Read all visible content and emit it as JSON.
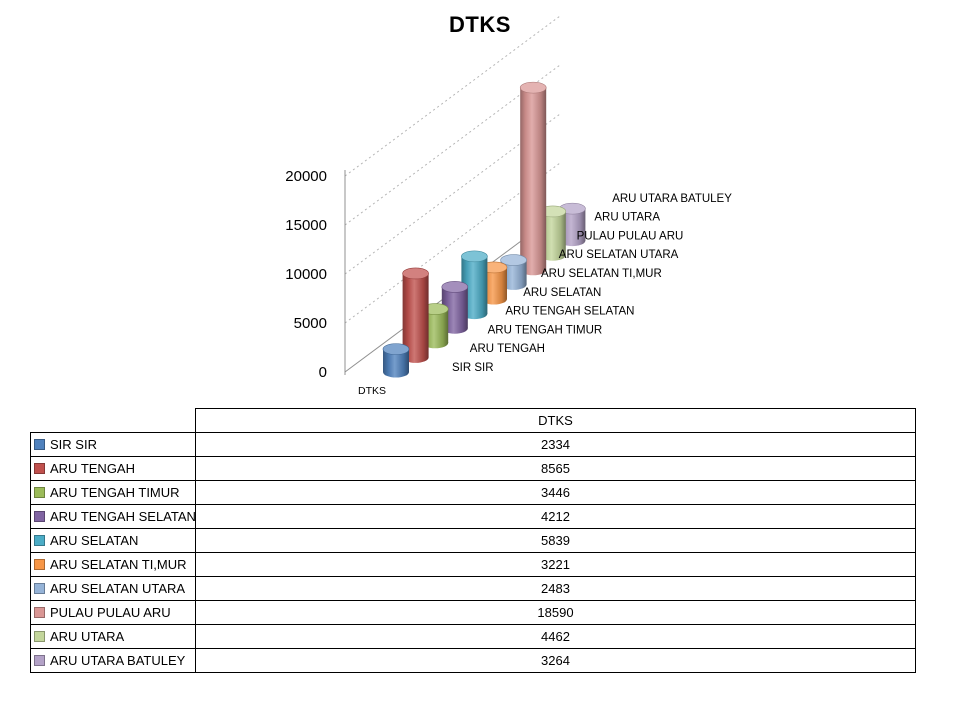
{
  "title": "DTKS",
  "chart_data": {
    "type": "bar",
    "subtype": "3d-cylinder",
    "title": "DTKS",
    "series_name": "DTKS",
    "axis_label": "DTKS",
    "categories": [
      "SIR SIR",
      "ARU TENGAH",
      "ARU TENGAH TIMUR",
      "ARU TENGAH SELATAN",
      "ARU SELATAN",
      "ARU SELATAN TI,MUR",
      "ARU SELATAN UTARA",
      "PULAU PULAU ARU",
      "ARU UTARA",
      "ARU UTARA BATULEY"
    ],
    "values": [
      2334,
      8565,
      3446,
      4212,
      5839,
      3221,
      2483,
      18590,
      4462,
      3264
    ],
    "colors": [
      "#4F81BD",
      "#C0504D",
      "#9BBB59",
      "#8064A2",
      "#4BACC6",
      "#F79646",
      "#95B3D7",
      "#D99694",
      "#C3D69B",
      "#B3A2C7"
    ],
    "ylim": [
      0,
      20000
    ],
    "yticks": [
      0,
      5000,
      10000,
      15000,
      20000
    ],
    "grid": true,
    "legend_position": "none"
  },
  "table": {
    "header": "DTKS"
  }
}
